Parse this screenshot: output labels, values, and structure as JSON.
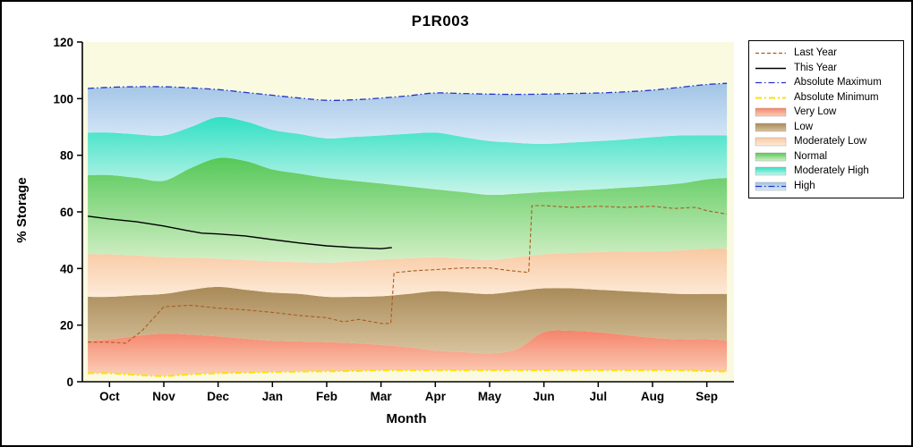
{
  "chart_data": {
    "type": "area",
    "title": "P1R003",
    "xlabel": "Month",
    "ylabel": "% Storage",
    "ylim": [
      0,
      120
    ],
    "yticks": [
      0,
      20,
      40,
      60,
      80,
      100,
      120
    ],
    "x_months": [
      "Oct",
      "Nov",
      "Dec",
      "Jan",
      "Feb",
      "Mar",
      "Apr",
      "May",
      "Jun",
      "Jul",
      "Aug",
      "Sep"
    ],
    "plot_bg": "#fafae1",
    "grid": false,
    "legend_position": "outside-right",
    "band_x": [
      -0.4,
      0,
      0.5,
      1,
      1.5,
      2,
      2.5,
      3,
      3.5,
      4,
      4.5,
      5,
      5.5,
      6,
      6.5,
      7,
      7.5,
      8,
      8.5,
      9,
      9.5,
      10,
      10.5,
      11,
      11.37
    ],
    "boundaries": {
      "absolute_minimum": [
        3,
        3,
        2.4,
        2,
        2.6,
        3,
        3.2,
        3.4,
        3.6,
        3.7,
        3.8,
        4,
        4,
        4,
        4,
        4,
        4,
        4,
        4,
        4,
        4,
        4,
        4,
        3.8,
        3.6
      ],
      "very_low_top": [
        14.5,
        15,
        16.2,
        17,
        16.6,
        16,
        15.2,
        14.5,
        14.2,
        14,
        13.6,
        13,
        12.2,
        11,
        10.5,
        10,
        11.5,
        17.5,
        18,
        17.5,
        16.5,
        15.5,
        15,
        15,
        14.6
      ],
      "low_top": [
        30,
        30,
        30.5,
        31,
        32.5,
        33.5,
        32.5,
        31.5,
        31,
        30,
        30,
        30.2,
        31,
        32,
        31.5,
        31,
        32,
        33,
        33,
        32.5,
        32,
        31.5,
        31,
        31,
        31
      ],
      "moderately_low_top": [
        45,
        45,
        44.6,
        44,
        43.8,
        43.5,
        43,
        42.5,
        42.2,
        42,
        42.5,
        43.2,
        43.6,
        44,
        43.5,
        43,
        44,
        45,
        45.5,
        45.8,
        46,
        46,
        46.4,
        47,
        47
      ],
      "normal_top": [
        73,
        73,
        72,
        71,
        75.5,
        79,
        78,
        75,
        73.5,
        72,
        71,
        70,
        69,
        68,
        67,
        66,
        66.4,
        67,
        67.5,
        68,
        68.6,
        69.2,
        70,
        71.5,
        72
      ],
      "moderately_high_top": [
        88,
        88,
        87.4,
        87,
        90,
        93.5,
        92,
        89,
        87.5,
        86,
        86.5,
        87,
        87.6,
        88,
        86.5,
        85,
        84.4,
        84,
        84.5,
        85,
        85.6,
        86.4,
        87,
        87,
        87
      ],
      "absolute_maximum": [
        103.6,
        104,
        104.2,
        104.2,
        103.8,
        103.2,
        102.2,
        101.2,
        100.2,
        99.4,
        99.6,
        100.2,
        101,
        102,
        101.8,
        101.6,
        101.5,
        101.6,
        101.8,
        102,
        102.4,
        103,
        104,
        105,
        105.4
      ]
    },
    "bands": [
      {
        "label": "Very Low",
        "lower": "absolute_minimum",
        "upper": "very_low_top",
        "color_top": "#f5836a",
        "color_bottom": "#fbd0ba"
      },
      {
        "label": "Low",
        "lower": "very_low_top",
        "upper": "low_top",
        "color_top": "#a98a58",
        "color_bottom": "#d8c49e"
      },
      {
        "label": "Moderately Low",
        "lower": "low_top",
        "upper": "moderately_low_top",
        "color_top": "#f8c9a2",
        "color_bottom": "#fdebd8"
      },
      {
        "label": "Normal",
        "lower": "moderately_low_top",
        "upper": "normal_top",
        "color_top": "#55c858",
        "color_bottom": "#d5f0c8"
      },
      {
        "label": "Moderately High",
        "lower": "normal_top",
        "upper": "moderately_high_top",
        "color_top": "#30e0c4",
        "color_bottom": "#c8f5ea"
      },
      {
        "label": "High",
        "lower": "moderately_high_top",
        "upper": "absolute_maximum",
        "color_top": "#a2c4e6",
        "color_bottom": "#daeaf8"
      }
    ],
    "boundary_lines": [
      {
        "label": "Absolute Maximum",
        "boundary": "absolute_maximum",
        "color": "#2233cc",
        "dash": "7 3 1.5 3",
        "width": 1.3
      },
      {
        "label": "Absolute Minimum",
        "boundary": "absolute_minimum",
        "color": "#ffe000",
        "dash": "7 3 2 3",
        "width": 2
      }
    ],
    "series": [
      {
        "name": "Last Year",
        "color": "#a85c1e",
        "dash": "4 2.5",
        "width": 1.1,
        "x": [
          -0.4,
          0,
          0.3,
          0.6,
          1,
          1.5,
          2,
          2.5,
          3,
          3.5,
          4,
          4.3,
          4.6,
          5,
          5.18,
          5.24,
          5.6,
          6,
          6.5,
          7,
          7.4,
          7.72,
          7.78,
          8,
          8.5,
          9,
          9.5,
          10,
          10.4,
          10.8,
          11,
          11.37
        ],
        "y": [
          14,
          14,
          13.6,
          18,
          26.5,
          27,
          26,
          25.4,
          24.5,
          23.4,
          22.6,
          21.2,
          22,
          20.6,
          20.6,
          38.5,
          39.2,
          39.6,
          40.2,
          40.2,
          39.2,
          38.6,
          62.2,
          62.2,
          61.6,
          62,
          61.6,
          62,
          61.2,
          61.6,
          60.4,
          59.2
        ]
      },
      {
        "name": "This Year",
        "color": "#000000",
        "dash": "",
        "width": 1.4,
        "x": [
          -0.4,
          0,
          0.5,
          1,
          1.4,
          1.7,
          2,
          2.5,
          3,
          3.5,
          4,
          4.5,
          5,
          5.2
        ],
        "y": [
          58.5,
          57.5,
          56.5,
          55,
          53.5,
          52.5,
          52.2,
          51.5,
          50.2,
          49,
          48,
          47.4,
          47,
          47.4
        ]
      }
    ]
  },
  "legend": {
    "items": [
      {
        "label": "Last Year",
        "swatch": "line",
        "color": "#a85c1e",
        "dash": "4 2.5",
        "width": 1.2
      },
      {
        "label": "This Year",
        "swatch": "line",
        "color": "#000000",
        "dash": "",
        "width": 1.4
      },
      {
        "label": "Absolute Maximum",
        "swatch": "line",
        "color": "#2233cc",
        "dash": "7 3 1.5 3",
        "width": 1.3
      },
      {
        "label": "Absolute Minimum",
        "swatch": "line",
        "color": "#ffe000",
        "dash": "7 3 2 3",
        "width": 2
      },
      {
        "label": "Very Low",
        "swatch": "band",
        "color_top": "#f5836a",
        "color_bottom": "#fbd0ba"
      },
      {
        "label": "Low",
        "swatch": "band",
        "color_top": "#a98a58",
        "color_bottom": "#d8c49e"
      },
      {
        "label": "Moderately Low",
        "swatch": "band",
        "color_top": "#f8c9a2",
        "color_bottom": "#fdebd8"
      },
      {
        "label": "Normal",
        "swatch": "band",
        "color_top": "#55c858",
        "color_bottom": "#d5f0c8"
      },
      {
        "label": "Moderately High",
        "swatch": "band",
        "color_top": "#30e0c4",
        "color_bottom": "#c8f5ea"
      },
      {
        "label": "High",
        "swatch": "band-line",
        "color_top": "#a2c4e6",
        "color_bottom": "#daeaf8",
        "color": "#2233cc",
        "dash": "7 3 1.5 3",
        "width": 1.3
      }
    ]
  }
}
